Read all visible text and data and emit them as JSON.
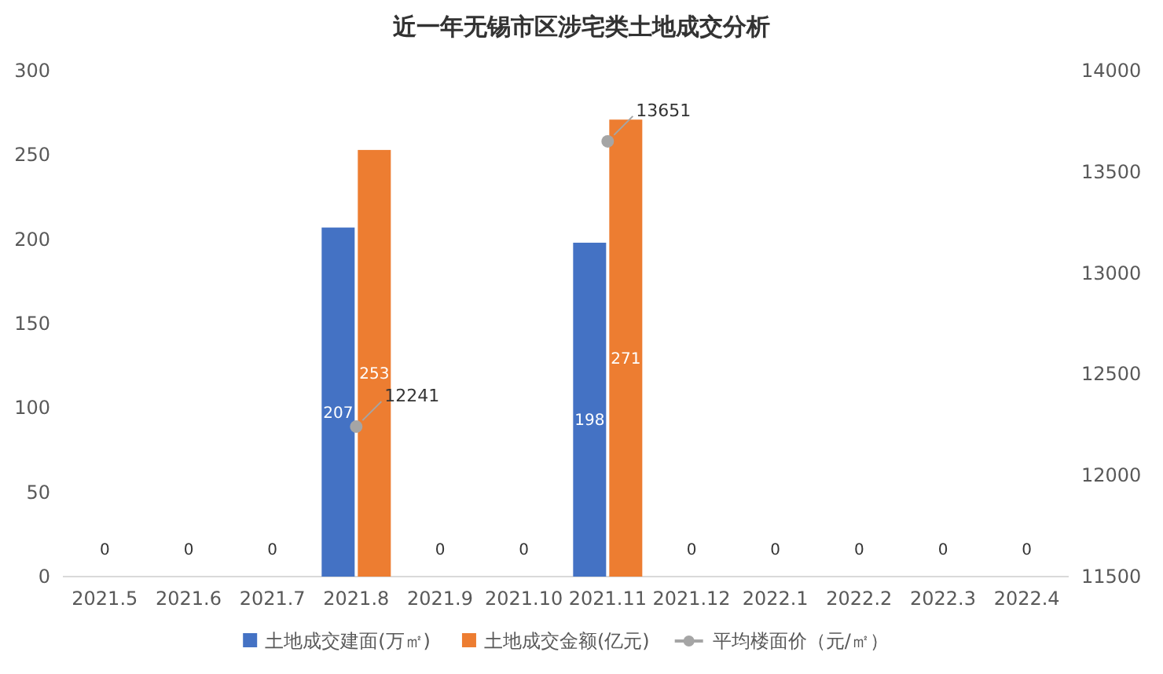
{
  "chart_data": {
    "type": "bar",
    "title": "近一年无锡市区涉宅类土地成交分析",
    "categories": [
      "2021.5",
      "2021.6",
      "2021.7",
      "2021.8",
      "2021.9",
      "2021.10",
      "2021.11",
      "2021.12",
      "2022.1",
      "2022.2",
      "2022.3",
      "2022.4"
    ],
    "series": [
      {
        "name": "土地成交建面(万㎡)",
        "color": "#4472c4",
        "values": [
          0,
          0,
          0,
          207,
          0,
          0,
          198,
          0,
          0,
          0,
          0,
          0
        ],
        "value_labels": [
          "0",
          "0",
          "0",
          "207",
          "0",
          "0",
          "198",
          "0",
          "0",
          "0",
          "0",
          "0"
        ]
      },
      {
        "name": "土地成交金额(亿元)",
        "color": "#ed7d31",
        "values": [
          0,
          0,
          0,
          253,
          0,
          0,
          271,
          0,
          0,
          0,
          0,
          0
        ],
        "value_labels": [
          null,
          null,
          null,
          "253",
          null,
          null,
          "271",
          null,
          null,
          null,
          null,
          null
        ]
      },
      {
        "name": "平均楼面价（元/㎡）",
        "type": "scatter",
        "axis": "y2",
        "marker": "circle",
        "color": "#a5a5a5",
        "values": [
          null,
          null,
          null,
          12241,
          null,
          null,
          13651,
          null,
          null,
          null,
          null,
          null
        ],
        "value_labels": [
          null,
          null,
          null,
          "12241",
          null,
          null,
          "13651",
          null,
          null,
          null,
          null,
          null
        ]
      }
    ],
    "ylim": [
      0,
      300
    ],
    "yticks": [
      0,
      50,
      100,
      150,
      200,
      250,
      300
    ],
    "y2lim": [
      11500,
      14000
    ],
    "y2ticks": [
      11500,
      12000,
      12500,
      13000,
      13500,
      14000
    ],
    "legend": "bottom"
  }
}
